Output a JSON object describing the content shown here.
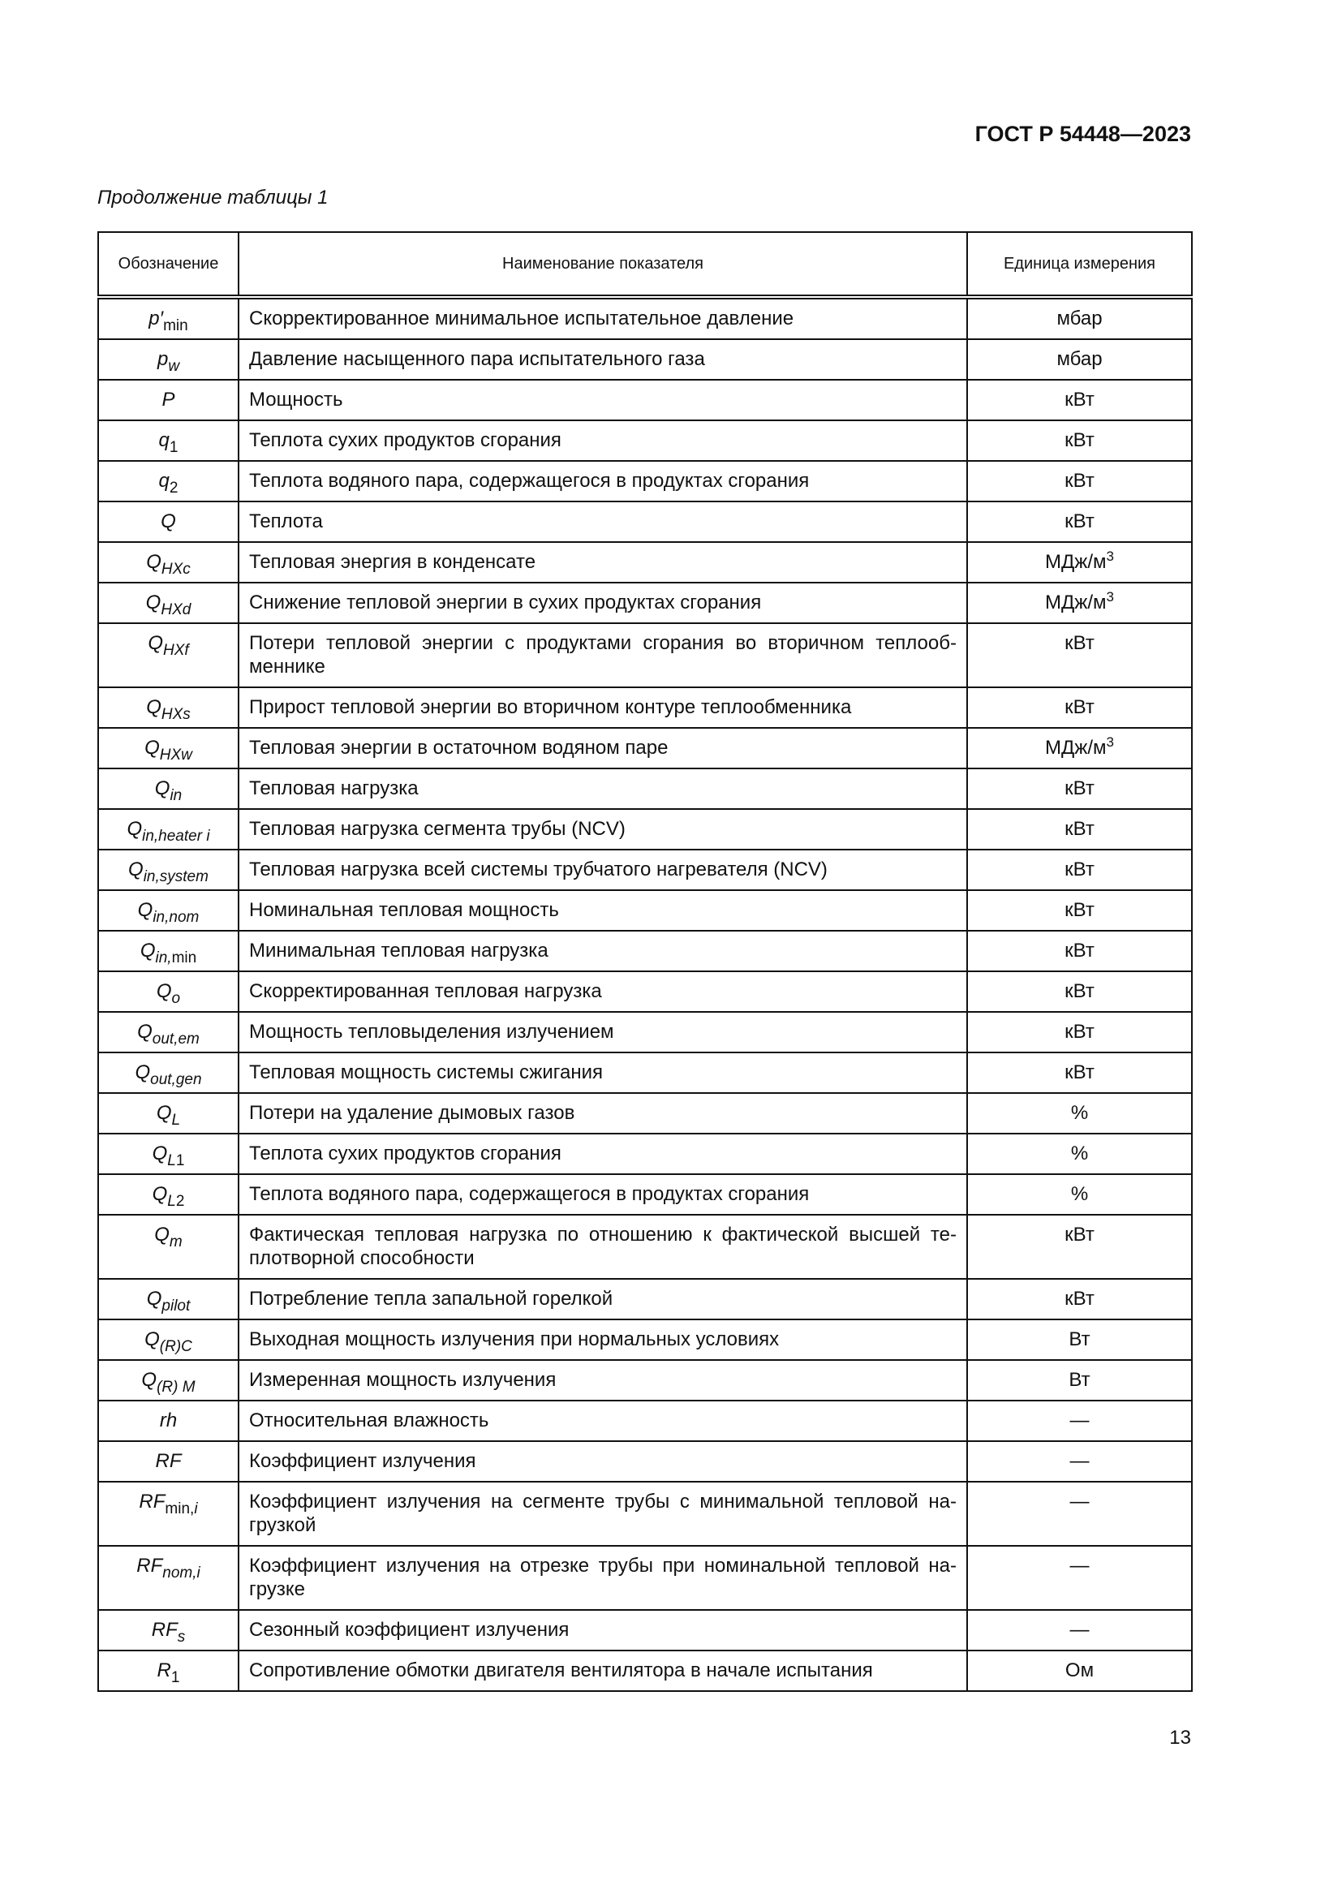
{
  "header": {
    "doc_code": "ГОСТ Р 54448—2023",
    "caption": "Продолжение таблицы 1",
    "page_number": "13"
  },
  "table": {
    "columns": [
      "Обозначение",
      "Наименование показателя",
      "Единица измерения"
    ],
    "rows": [
      {
        "symbol": {
          "base": "p",
          "prime": "′",
          "sub": [
            [
              "min",
              0
            ]
          ]
        },
        "name": "Скорректированное минимальное испытательное давление",
        "unit": "мбар"
      },
      {
        "symbol": {
          "base": "p",
          "sub": [
            [
              "w",
              1
            ]
          ]
        },
        "name": "Давление насыщенного пара испытательного газа",
        "unit": "мбар"
      },
      {
        "symbol": {
          "base": "P",
          "sub": []
        },
        "name": "Мощность",
        "unit": "кВт"
      },
      {
        "symbol": {
          "base": "q",
          "sub": [
            [
              "1",
              0
            ]
          ]
        },
        "name": "Теплота сухих продуктов сгорания",
        "unit": "кВт"
      },
      {
        "symbol": {
          "base": "q",
          "sub": [
            [
              "2",
              0
            ]
          ]
        },
        "name": "Теплота водяного пара, содержащегося в продуктах сгорания",
        "unit": "кВт"
      },
      {
        "symbol": {
          "base": "Q",
          "sub": []
        },
        "name": "Теплота",
        "unit": "кВт"
      },
      {
        "symbol": {
          "base": "Q",
          "sub": [
            [
              "HXc",
              1
            ]
          ]
        },
        "name": "Тепловая энергия в конденсате",
        "unit": "МДж/м",
        "unit_sup": "3"
      },
      {
        "symbol": {
          "base": "Q",
          "sub": [
            [
              "HXd",
              1
            ]
          ]
        },
        "name": "Снижение тепловой энергии в сухих продуктах сгорания",
        "unit": "МДж/м",
        "unit_sup": "3"
      },
      {
        "symbol": {
          "base": "Q",
          "sub": [
            [
              "HXf",
              1
            ]
          ]
        },
        "name": "Потери тепловой энергии с продуктами сгорания во вторичном теплооб­меннике",
        "unit": "кВт"
      },
      {
        "symbol": {
          "base": "Q",
          "sub": [
            [
              "HXs",
              1
            ]
          ]
        },
        "name": "Прирост тепловой энергии во вторичном контуре теплообменника",
        "unit": "кВт"
      },
      {
        "symbol": {
          "base": "Q",
          "sub": [
            [
              "HXw",
              1
            ]
          ]
        },
        "name": "Тепловая энергии в остаточном водяном паре",
        "unit": "МДж/м",
        "unit_sup": "3"
      },
      {
        "symbol": {
          "base": "Q",
          "sub": [
            [
              "in",
              1
            ]
          ]
        },
        "name": "Тепловая нагрузка",
        "unit": "кВт"
      },
      {
        "symbol": {
          "base": "Q",
          "sub": [
            [
              "in,heater i",
              1
            ]
          ]
        },
        "name": "Тепловая нагрузка сегмента трубы (NCV)",
        "unit": "кВт"
      },
      {
        "symbol": {
          "base": "Q",
          "sub": [
            [
              "in,system",
              1
            ]
          ]
        },
        "name": "Тепловая нагрузка всей системы трубчатого нагревателя (NCV)",
        "unit": "кВт"
      },
      {
        "symbol": {
          "base": "Q",
          "sub": [
            [
              "in,nom",
              1
            ]
          ]
        },
        "name": "Номинальная тепловая мощность",
        "unit": "кВт"
      },
      {
        "symbol": {
          "base": "Q",
          "sub": [
            [
              "in,",
              1
            ],
            [
              "min",
              0
            ]
          ]
        },
        "name": "Минимальная тепловая нагрузка",
        "unit": "кВт"
      },
      {
        "symbol": {
          "base": "Q",
          "sub": [
            [
              "o",
              1
            ]
          ]
        },
        "name": "Скорректированная тепловая нагрузка",
        "unit": "кВт"
      },
      {
        "symbol": {
          "base": "Q",
          "sub": [
            [
              "out,em",
              1
            ]
          ]
        },
        "name": "Мощность тепловыделения излучением",
        "unit": "кВт"
      },
      {
        "symbol": {
          "base": "Q",
          "sub": [
            [
              "out,gen",
              1
            ]
          ]
        },
        "name": "Тепловая мощность системы сжигания",
        "unit": "кВт"
      },
      {
        "symbol": {
          "base": "Q",
          "sub": [
            [
              "L",
              1
            ]
          ]
        },
        "name": "Потери на удаление дымовых газов",
        "unit": "%"
      },
      {
        "symbol": {
          "base": "Q",
          "sub": [
            [
              "L",
              1
            ],
            [
              "1",
              0
            ]
          ]
        },
        "name": "Теплота сухих продуктов сгорания",
        "unit": "%"
      },
      {
        "symbol": {
          "base": "Q",
          "sub": [
            [
              "L",
              1
            ],
            [
              "2",
              0
            ]
          ]
        },
        "name": "Теплота водяного пара, содержащегося в продуктах сгорания",
        "unit": "%"
      },
      {
        "symbol": {
          "base": "Q",
          "sub": [
            [
              "m",
              1
            ]
          ]
        },
        "name": "Фактическая тепловая нагрузка по отношению к фактической высшей те­плотворной способности",
        "unit": "кВт"
      },
      {
        "symbol": {
          "base": "Q",
          "sub": [
            [
              "pilot",
              1
            ]
          ]
        },
        "name": "Потребление тепла запальной горелкой",
        "unit": "кВт"
      },
      {
        "symbol": {
          "base": "Q",
          "sub": [
            [
              "(R)C",
              1
            ]
          ]
        },
        "name": "Выходная мощность излучения при нормальных условиях",
        "unit": "Вт"
      },
      {
        "symbol": {
          "base": "Q",
          "sub": [
            [
              "(R) M",
              1
            ]
          ]
        },
        "name": "Измеренная мощность излучения",
        "unit": "Вт"
      },
      {
        "symbol": {
          "base": "rh",
          "sub": []
        },
        "name": "Относительная влажность",
        "unit": "—"
      },
      {
        "symbol": {
          "base": "RF",
          "sub": []
        },
        "name": "Коэффициент излучения",
        "unit": "—"
      },
      {
        "symbol": {
          "base": "RF",
          "sub": [
            [
              "min,",
              0
            ],
            [
              "i",
              1
            ]
          ]
        },
        "name": "Коэффициент излучения на сегменте трубы с минимальной тепловой на­грузкой",
        "unit": "—"
      },
      {
        "symbol": {
          "base": "RF",
          "sub": [
            [
              "nom,i",
              1
            ]
          ]
        },
        "name": "Коэффициент излучения на отрезке трубы при номинальной тепловой на­грузке",
        "unit": "—"
      },
      {
        "symbol": {
          "base": "RF",
          "sub": [
            [
              "s",
              1
            ]
          ]
        },
        "name": "Сезонный коэффициент излучения",
        "unit": "—"
      },
      {
        "symbol": {
          "base": "R",
          "sub": [
            [
              "1",
              0
            ]
          ]
        },
        "name": "Сопротивление обмотки двигателя вентилятора в начале испытания",
        "unit": "Ом"
      }
    ]
  }
}
